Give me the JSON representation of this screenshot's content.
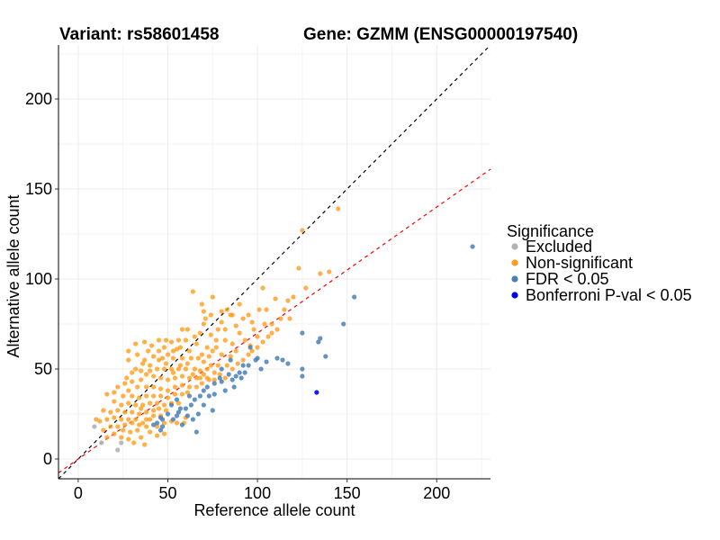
{
  "chart_data": {
    "type": "scatter",
    "title_left": "Variant: rs58601458",
    "title_right": "Gene: GZMM (ENSG00000197540)",
    "xlabel": "Reference allele count",
    "ylabel": "Alternative allele count",
    "xlim": [
      -11,
      230
    ],
    "ylim": [
      -11,
      230
    ],
    "xticks": [
      0,
      50,
      100,
      150,
      200
    ],
    "yticks": [
      0,
      50,
      100,
      150,
      200
    ],
    "grid": true,
    "legend": {
      "title": "Significance",
      "position": "right",
      "entries": [
        {
          "key": "excluded",
          "label": "Excluded",
          "color": "#B3B3B3"
        },
        {
          "key": "nonsig",
          "label": "Non-significant",
          "color": "#FF9A1A"
        },
        {
          "key": "fdr",
          "label": "FDR < 0.05",
          "color": "#4A7FB5"
        },
        {
          "key": "bonf",
          "label": "Bonferroni P-val < 0.05",
          "color": "#0000FF"
        }
      ]
    },
    "reference_lines": [
      {
        "name": "identity",
        "slope": 1.0,
        "intercept": 0,
        "color": "#000000",
        "style": "dashed"
      },
      {
        "name": "fit",
        "slope": 0.7,
        "intercept": 0,
        "color": "#FF0000",
        "style": "dashed"
      }
    ],
    "series": [
      {
        "name": "Excluded",
        "key": "excluded",
        "points": [
          [
            9,
            18
          ],
          [
            13,
            9
          ],
          [
            22,
            5
          ],
          [
            24,
            9
          ]
        ]
      },
      {
        "name": "Bonferroni P-val < 0.05",
        "key": "bonf",
        "points": [
          [
            133,
            37
          ]
        ]
      },
      {
        "name": "FDR < 0.05",
        "key": "fdr",
        "points": [
          [
            220,
            118
          ],
          [
            154,
            90
          ],
          [
            148,
            75
          ],
          [
            125,
            70
          ],
          [
            135,
            67
          ],
          [
            134,
            65
          ],
          [
            138,
            57
          ],
          [
            114,
            55
          ],
          [
            125,
            50
          ],
          [
            125,
            46
          ],
          [
            105,
            54
          ],
          [
            99,
            55
          ],
          [
            100,
            56
          ],
          [
            95,
            52
          ],
          [
            93,
            48
          ],
          [
            88,
            46
          ],
          [
            87,
            40
          ],
          [
            90,
            48
          ],
          [
            84,
            47
          ],
          [
            79,
            45
          ],
          [
            80,
            43
          ],
          [
            76,
            42
          ],
          [
            72,
            40
          ],
          [
            70,
            38
          ],
          [
            73,
            35
          ],
          [
            68,
            35
          ],
          [
            65,
            33
          ],
          [
            62,
            35
          ],
          [
            60,
            28
          ],
          [
            57,
            28
          ],
          [
            56,
            26
          ],
          [
            55,
            24
          ],
          [
            50,
            25
          ],
          [
            53,
            22
          ],
          [
            46,
            23
          ],
          [
            47,
            22
          ],
          [
            44,
            20
          ],
          [
            42,
            19
          ],
          [
            47,
            18
          ],
          [
            66,
            15
          ],
          [
            46,
            16
          ],
          [
            63,
            30
          ],
          [
            70,
            30
          ],
          [
            76,
            36
          ],
          [
            82,
            38
          ],
          [
            86,
            44
          ],
          [
            91,
            45
          ],
          [
            102,
            50
          ],
          [
            111,
            56
          ],
          [
            117,
            53
          ],
          [
            96,
            62
          ],
          [
            64,
            22
          ],
          [
            58,
            19
          ],
          [
            75,
            27
          ],
          [
            61,
            24
          ],
          [
            67,
            25
          ],
          [
            52,
            30
          ],
          [
            55,
            33
          ],
          [
            80,
            50
          ],
          [
            85,
            55
          ],
          [
            92,
            52
          ]
        ]
      },
      {
        "name": "Non-significant",
        "key": "nonsig",
        "points": [
          [
            145,
            139
          ],
          [
            125,
            127
          ],
          [
            123,
            106
          ],
          [
            135,
            103
          ],
          [
            140,
            104
          ],
          [
            127,
            95
          ],
          [
            117,
            88
          ],
          [
            110,
            89
          ],
          [
            105,
            83
          ],
          [
            115,
            83
          ],
          [
            120,
            90
          ],
          [
            113,
            78
          ],
          [
            108,
            75
          ],
          [
            118,
            78
          ],
          [
            64,
            93
          ],
          [
            75,
            90
          ],
          [
            103,
            95
          ],
          [
            90,
            86
          ],
          [
            101,
            83
          ],
          [
            83,
            83
          ],
          [
            85,
            80
          ],
          [
            95,
            80
          ],
          [
            80,
            76
          ],
          [
            82,
            72
          ],
          [
            88,
            74
          ],
          [
            90,
            70
          ],
          [
            98,
            72
          ],
          [
            100,
            68
          ],
          [
            93,
            66
          ],
          [
            96,
            63
          ],
          [
            69,
            86
          ],
          [
            70,
            82
          ],
          [
            70,
            75
          ],
          [
            68,
            70
          ],
          [
            74,
            69
          ],
          [
            77,
            66
          ],
          [
            78,
            72
          ],
          [
            82,
            66
          ],
          [
            86,
            64
          ],
          [
            88,
            60
          ],
          [
            85,
            57
          ],
          [
            80,
            58
          ],
          [
            75,
            60
          ],
          [
            72,
            62
          ],
          [
            66,
            64
          ],
          [
            62,
            60
          ],
          [
            55,
            61
          ],
          [
            58,
            72
          ],
          [
            61,
            72
          ],
          [
            56,
            66
          ],
          [
            52,
            65
          ],
          [
            48,
            62
          ],
          [
            45,
            60
          ],
          [
            50,
            58
          ],
          [
            53,
            56
          ],
          [
            58,
            56
          ],
          [
            63,
            56
          ],
          [
            67,
            56
          ],
          [
            70,
            54
          ],
          [
            74,
            52
          ],
          [
            78,
            52
          ],
          [
            83,
            52
          ],
          [
            65,
            50
          ],
          [
            60,
            50
          ],
          [
            56,
            50
          ],
          [
            52,
            50
          ],
          [
            48,
            50
          ],
          [
            44,
            50
          ],
          [
            40,
            52
          ],
          [
            36,
            53
          ],
          [
            32,
            50
          ],
          [
            38,
            47
          ],
          [
            42,
            46
          ],
          [
            46,
            45
          ],
          [
            50,
            44
          ],
          [
            54,
            45
          ],
          [
            58,
            46
          ],
          [
            62,
            45
          ],
          [
            66,
            45
          ],
          [
            70,
            47
          ],
          [
            73,
            44
          ],
          [
            76,
            48
          ],
          [
            72,
            50
          ],
          [
            68,
            49
          ],
          [
            35,
            44
          ],
          [
            30,
            43
          ],
          [
            26,
            42
          ],
          [
            22,
            40
          ],
          [
            20,
            37
          ],
          [
            28,
            38
          ],
          [
            33,
            40
          ],
          [
            38,
            40
          ],
          [
            42,
            40
          ],
          [
            46,
            39
          ],
          [
            50,
            38
          ],
          [
            54,
            40
          ],
          [
            58,
            41
          ],
          [
            62,
            40
          ],
          [
            66,
            40
          ],
          [
            69,
            42
          ],
          [
            25,
            35
          ],
          [
            30,
            35
          ],
          [
            34,
            34
          ],
          [
            38,
            35
          ],
          [
            42,
            35
          ],
          [
            46,
            35
          ],
          [
            50,
            34
          ],
          [
            54,
            36
          ],
          [
            58,
            36
          ],
          [
            61,
            37
          ],
          [
            16,
            36
          ],
          [
            20,
            32
          ],
          [
            24,
            30
          ],
          [
            28,
            31
          ],
          [
            32,
            30
          ],
          [
            36,
            30
          ],
          [
            40,
            31
          ],
          [
            44,
            31
          ],
          [
            48,
            30
          ],
          [
            52,
            31
          ],
          [
            56,
            31
          ],
          [
            35,
            28
          ],
          [
            38,
            26
          ],
          [
            42,
            27
          ],
          [
            45,
            28
          ],
          [
            49,
            27
          ],
          [
            14,
            27
          ],
          [
            18,
            26
          ],
          [
            22,
            27
          ],
          [
            26,
            26
          ],
          [
            30,
            26
          ],
          [
            34,
            25
          ],
          [
            38,
            22
          ],
          [
            42,
            24
          ],
          [
            46,
            24
          ],
          [
            32,
            22
          ],
          [
            28,
            22
          ],
          [
            24,
            22
          ],
          [
            20,
            23
          ],
          [
            16,
            22
          ],
          [
            12,
            21
          ],
          [
            10,
            22
          ],
          [
            18,
            18
          ],
          [
            22,
            18
          ],
          [
            26,
            19
          ],
          [
            30,
            20
          ],
          [
            34,
            19
          ],
          [
            38,
            18
          ],
          [
            25,
            16
          ],
          [
            29,
            15
          ],
          [
            33,
            16
          ],
          [
            20,
            14
          ],
          [
            14,
            16
          ],
          [
            16,
            12
          ],
          [
            24,
            12
          ],
          [
            28,
            11
          ],
          [
            31,
            9
          ],
          [
            35,
            12
          ],
          [
            40,
            15
          ],
          [
            44,
            13
          ],
          [
            37,
            8
          ],
          [
            48,
            20
          ],
          [
            52,
            21
          ],
          [
            36,
            20
          ],
          [
            40,
            22
          ],
          [
            44,
            18
          ],
          [
            48,
            14
          ],
          [
            55,
            20
          ],
          [
            59,
            20
          ],
          [
            60,
            23
          ],
          [
            27,
            45
          ],
          [
            30,
            48
          ],
          [
            35,
            49
          ],
          [
            40,
            49
          ],
          [
            45,
            55
          ],
          [
            49,
            53
          ],
          [
            37,
            55
          ],
          [
            42,
            57
          ],
          [
            33,
            58
          ],
          [
            47,
            56
          ],
          [
            39,
            60
          ],
          [
            28,
            55
          ],
          [
            53,
            48
          ],
          [
            57,
            52
          ],
          [
            61,
            53
          ],
          [
            64,
            47
          ],
          [
            68,
            45
          ],
          [
            72,
            45
          ],
          [
            76,
            44
          ],
          [
            79,
            47
          ],
          [
            82,
            45
          ],
          [
            86,
            50
          ],
          [
            89,
            53
          ],
          [
            92,
            55
          ],
          [
            95,
            58
          ],
          [
            97,
            60
          ],
          [
            100,
            62
          ],
          [
            103,
            65
          ],
          [
            106,
            68
          ],
          [
            108,
            70
          ],
          [
            111,
            72
          ],
          [
            104,
            75
          ],
          [
            97,
            76
          ],
          [
            92,
            78
          ],
          [
            86,
            80
          ],
          [
            80,
            82
          ],
          [
            74,
            80
          ],
          [
            71,
            78
          ],
          [
            77,
            62
          ],
          [
            73,
            57
          ],
          [
            69,
            58
          ],
          [
            65,
            68
          ],
          [
            60,
            66
          ],
          [
            57,
            62
          ],
          [
            53,
            60
          ],
          [
            49,
            66
          ],
          [
            45,
            66
          ],
          [
            41,
            63
          ],
          [
            37,
            65
          ],
          [
            32,
            64
          ],
          [
            28,
            60
          ]
        ]
      }
    ]
  }
}
